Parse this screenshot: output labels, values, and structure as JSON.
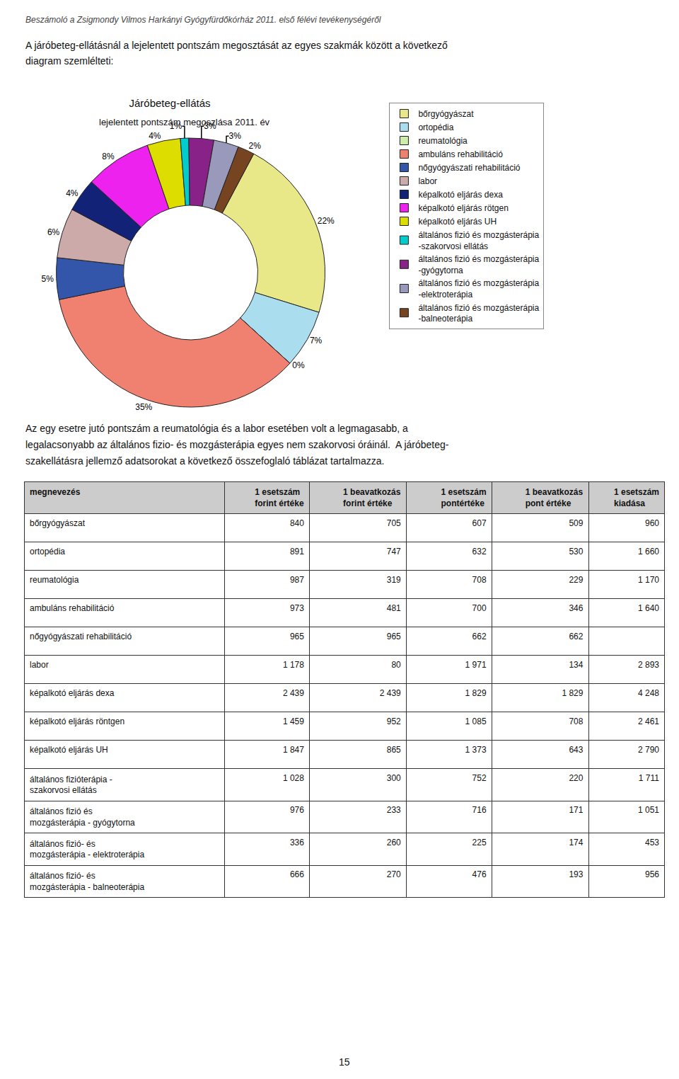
{
  "chart_data": [
    {
      "type": "pie",
      "title": "Járóbeteg-ellátás",
      "subtitle": "lejelentett pontszám megoszlása 2011. év",
      "categories": [
        "bőrgyógyászat",
        "ortopédia",
        "reumatológia",
        "ambuláns rehabilitáció",
        "nőgyógyászati rehabilitáció",
        "labor",
        "képalkotó eljárás dexa",
        "képalkotó eljárás rötgen",
        "képalkotó eljárás UH",
        "általános fizió és mozgásterápia\n-szakorvosi ellátás",
        "általános fizió és mozgásterápia\n-gyógytorna",
        "általános fizió és mozgásterápia\n-elektroterápia",
        "általános fizió és mozgásterápia\n-balneoterápia"
      ],
      "values": [
        22,
        7,
        0,
        35,
        5,
        6,
        4,
        8,
        4,
        1,
        3,
        3,
        2
      ],
      "value_labels": [
        "22%",
        "7%",
        "0%",
        "35%",
        "5%",
        "6%",
        "4%",
        "8%",
        "4%",
        "1%",
        "3%",
        "3%",
        "2%"
      ],
      "colors": [
        "#E8E888",
        "#AADDEE",
        "#CCEEAA",
        "#F08070",
        "#3355AA",
        "#CCAAAA",
        "#112277",
        "#EE22EE",
        "#DDDD00",
        "#00CCCC",
        "#882288",
        "#9999BB",
        "#774422"
      ],
      "data_labels": true,
      "legend": "right",
      "annotations": [
        "Beszámoló a Zsigmondy Vilmos Harkányi Gyógyfürdőkórház 2011. első félévi tevékenységéről",
        "A járóbeteg-ellátásnál a lejelentett pontszám megosztását az egyes szakmák között a következő",
        "diagram szemlélteti:",
        "Az egy esetre jutó pontszám a reumatológia és a labor esetében volt a legmagasabb, a",
        "legalacsonyabb az általános fizio- és mozgásterápia egyes nem szakorvosi óráinál.  A járóbeteg-",
        "szakellátásra jellemző adatsorokat a következő összefoglaló táblázat tartalmazza.",
        "15"
      ]
    },
    {
      "type": "table",
      "columns": [
        "megnevezés",
        "1 esetszám\nforint értéke",
        "1 beavatkozás\nforint értéke",
        "1 esetszám\npontértéke",
        "1 beavatkozás\npont értéke",
        "1 esetszám\nkiadása"
      ],
      "rows": [
        [
          "bőrgyógyászat",
          "840",
          "705",
          "607",
          "509",
          "960"
        ],
        [
          "ortopédia",
          "891",
          "747",
          "632",
          "530",
          "1 660"
        ],
        [
          "reumatológia",
          "987",
          "319",
          "708",
          "229",
          "1 170"
        ],
        [
          "ambuláns rehabilitáció",
          "973",
          "481",
          "700",
          "346",
          "1 640"
        ],
        [
          "nőgyógyászati rehabilitáció",
          "965",
          "965",
          "662",
          "662",
          ""
        ],
        [
          "labor",
          "1 178",
          "80",
          "1 971",
          "134",
          "2 893"
        ],
        [
          "képalkotó eljárás dexa",
          "2 439",
          "2 439",
          "1 829",
          "1 829",
          "4 248"
        ],
        [
          "képalkotó eljárás röntgen",
          "1 459",
          "952",
          "1 085",
          "708",
          "2 461"
        ],
        [
          "képalkotó eljárás UH",
          "1 847",
          "865",
          "1 373",
          "643",
          "2 790"
        ],
        [
          "általános fizióterápia -\nszakorvosi ellátás",
          "1 028",
          "300",
          "752",
          "220",
          "1 711"
        ],
        [
          "általános fizió és\nmozgásterápia - gyógytorna",
          "976",
          "233",
          "716",
          "171",
          "1 051"
        ],
        [
          "általános fizió- és\nmozgásterápia - elektroterápia",
          "336",
          "260",
          "225",
          "174",
          "453"
        ],
        [
          "általános fizió- és\nmozgásterápia - balneoterápia",
          "666",
          "270",
          "476",
          "193",
          "956"
        ]
      ]
    }
  ]
}
